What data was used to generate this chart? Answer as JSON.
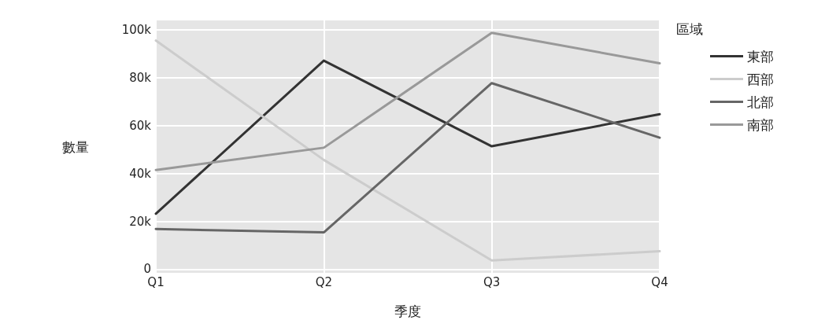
{
  "chart_data": {
    "type": "line",
    "xlabel": "季度",
    "ylabel": "數量",
    "legend_title": "區域",
    "categories": [
      "Q1",
      "Q2",
      "Q3",
      "Q4"
    ],
    "series": [
      {
        "name": "東部",
        "color": "#333333",
        "values": [
          23200,
          87200,
          51400,
          64800
        ]
      },
      {
        "name": "西部",
        "color": "#cccccc",
        "values": [
          95600,
          45700,
          3700,
          7500
        ]
      },
      {
        "name": "北部",
        "color": "#666666",
        "values": [
          16800,
          15400,
          77800,
          55000
        ]
      },
      {
        "name": "南部",
        "color": "#999999",
        "values": [
          41500,
          50800,
          98800,
          86100
        ]
      }
    ],
    "ylim": [
      -1500,
      104000
    ],
    "yticks": [
      {
        "value": 0,
        "label": "0"
      },
      {
        "value": 20000,
        "label": "20k"
      },
      {
        "value": 40000,
        "label": "40k"
      },
      {
        "value": 60000,
        "label": "60k"
      },
      {
        "value": 80000,
        "label": "80k"
      },
      {
        "value": 100000,
        "label": "100k"
      }
    ],
    "grid": true,
    "legend": "top right",
    "marker": "none",
    "line_style": "solid"
  }
}
